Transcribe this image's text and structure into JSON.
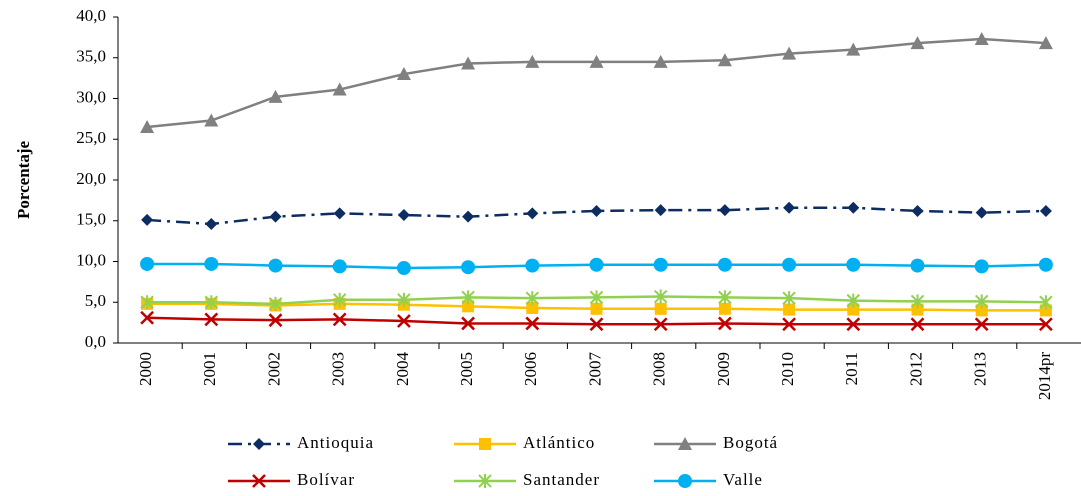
{
  "chart_data": {
    "type": "line",
    "y_label": "Porcentaje",
    "categories": [
      "2000",
      "2001",
      "2002",
      "2003",
      "2004",
      "2005",
      "2006",
      "2007",
      "2008",
      "2009",
      "2010",
      "2011",
      "2012",
      "2013",
      "2014pr"
    ],
    "ylim": [
      0,
      40
    ],
    "yticks": [
      {
        "value": 0,
        "label": "0,0"
      },
      {
        "value": 5,
        "label": "5,0"
      },
      {
        "value": 10,
        "label": "10,0"
      },
      {
        "value": 15,
        "label": "15,0"
      },
      {
        "value": 20,
        "label": "20,0"
      },
      {
        "value": 25,
        "label": "25,0"
      },
      {
        "value": 30,
        "label": "30,0"
      },
      {
        "value": 35,
        "label": "35,0"
      },
      {
        "value": 40,
        "label": "40,0"
      }
    ],
    "grid": false,
    "legend": "bottom",
    "series": [
      {
        "name": "Antioquia",
        "color": "#0d2d62",
        "marker": "diamond",
        "linestyle": "dashdot",
        "values": [
          15.1,
          14.6,
          15.5,
          15.9,
          15.7,
          15.5,
          15.9,
          16.2,
          16.3,
          16.3,
          16.6,
          16.6,
          16.2,
          16.0,
          16.2
        ]
      },
      {
        "name": "Atlántico",
        "color": "#ffc000",
        "marker": "square",
        "linestyle": "solid",
        "values": [
          4.8,
          4.8,
          4.6,
          4.8,
          4.7,
          4.5,
          4.3,
          4.2,
          4.2,
          4.2,
          4.1,
          4.1,
          4.1,
          4.0,
          4.0
        ]
      },
      {
        "name": "Bogotá",
        "color": "#808080",
        "marker": "triangle",
        "linestyle": "solid",
        "values": [
          26.5,
          27.3,
          30.2,
          31.1,
          33.0,
          34.3,
          34.5,
          34.5,
          34.5,
          34.7,
          35.5,
          36.0,
          36.8,
          37.3,
          36.8
        ]
      },
      {
        "name": "Bolívar",
        "color": "#c00000",
        "marker": "x",
        "linestyle": "solid",
        "values": [
          3.1,
          2.9,
          2.8,
          2.9,
          2.7,
          2.4,
          2.4,
          2.3,
          2.3,
          2.4,
          2.3,
          2.3,
          2.3,
          2.3,
          2.3
        ]
      },
      {
        "name": "Santander",
        "color": "#92d050",
        "marker": "star",
        "linestyle": "solid",
        "values": [
          5.0,
          5.0,
          4.8,
          5.3,
          5.3,
          5.6,
          5.5,
          5.6,
          5.7,
          5.6,
          5.5,
          5.2,
          5.1,
          5.1,
          5.0
        ]
      },
      {
        "name": "Valle",
        "color": "#00b0f0",
        "marker": "circle",
        "linestyle": "solid",
        "values": [
          9.7,
          9.7,
          9.5,
          9.4,
          9.2,
          9.3,
          9.5,
          9.6,
          9.6,
          9.6,
          9.6,
          9.6,
          9.5,
          9.4,
          9.6
        ]
      }
    ]
  }
}
